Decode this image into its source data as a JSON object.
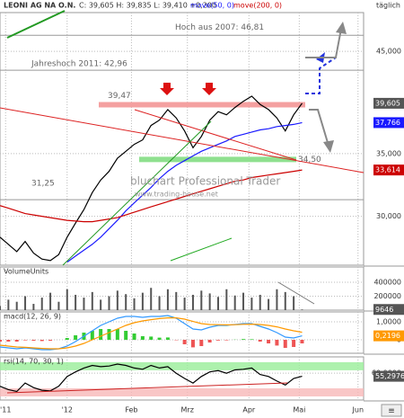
{
  "header": {
    "title": "LEONI AG NA O.N.",
    "subtitle": "C: 39,605 H: 39,835 L: 39,410 +0,200",
    "period": "täglich",
    "watermark": "bluchart Professional Trader",
    "website": "www.trading-house.net"
  },
  "chart_data": [
    {
      "type": "line",
      "log_scale": true,
      "xlim": [
        0,
        130
      ],
      "ylim": [
        26.6,
        49.5
      ],
      "yticks": [
        {
          "value": 45,
          "label": "45,000"
        },
        {
          "value": 35,
          "label": "35,000"
        },
        {
          "value": 30,
          "label": "30,000"
        }
      ],
      "x": [
        0,
        3,
        6,
        9,
        12,
        15,
        18,
        21,
        24,
        27,
        30,
        33,
        36,
        39,
        42,
        45,
        48,
        51,
        54,
        57,
        60,
        63,
        66,
        69,
        72,
        75,
        78,
        81,
        84,
        87,
        90,
        93,
        96,
        99,
        102,
        105,
        108
      ],
      "series": [
        {
          "color": "#000000",
          "values": [
            28.5,
            28.0,
            27.5,
            28.2,
            27.4,
            27.0,
            26.9,
            27.3,
            28.5,
            29.5,
            30.5,
            31.8,
            32.8,
            33.5,
            34.6,
            35.2,
            35.8,
            36.2,
            37.5,
            38.0,
            39.0,
            38.2,
            37.0,
            35.5,
            36.5,
            38.0,
            38.8,
            38.5,
            39.2,
            39.8,
            40.3,
            39.5,
            39.0,
            38.2,
            37.0,
            38.5,
            39.605
          ]
        },
        {
          "name": "move(50, 0)",
          "color": "#1a1aff",
          "values": [
            null,
            null,
            null,
            null,
            null,
            null,
            null,
            null,
            26.8,
            27.2,
            27.6,
            28.0,
            28.5,
            29.1,
            29.7,
            30.4,
            31.0,
            31.6,
            32.2,
            32.9,
            33.5,
            34.0,
            34.4,
            34.8,
            35.2,
            35.5,
            35.8,
            36.1,
            36.5,
            36.7,
            36.9,
            37.1,
            37.2,
            37.4,
            37.5,
            37.6,
            37.766
          ]
        },
        {
          "name": "move(200, 0)",
          "color": "#cc0000",
          "values": [
            30.8,
            30.6,
            30.4,
            30.2,
            30.1,
            30.0,
            29.9,
            29.8,
            29.7,
            29.65,
            29.6,
            29.6,
            29.7,
            29.8,
            29.9,
            30.1,
            30.3,
            30.5,
            30.7,
            30.9,
            31.1,
            31.3,
            31.5,
            31.7,
            31.9,
            32.1,
            32.3,
            32.5,
            32.7,
            32.8,
            33.0,
            33.1,
            33.2,
            33.3,
            33.4,
            33.5,
            33.614
          ]
        }
      ],
      "levels": [
        {
          "value": 46.81,
          "label": "Hoch aus 2007: 46,81",
          "color": "#999999"
        },
        {
          "value": 42.96,
          "label": "Jahreshoch 2011: 42,96",
          "color": "#999999"
        },
        {
          "value": 39.47,
          "label": "39,47",
          "color": "#f4a0a0"
        },
        {
          "value": 34.5,
          "label": "34,50",
          "color": "#8fe08f"
        },
        {
          "value": 31.25,
          "label": "31,25",
          "color": "#999999"
        }
      ],
      "tags": [
        {
          "value": 39.605,
          "label": "39,605",
          "color": "#555555"
        },
        {
          "value": 37.766,
          "label": "37,766",
          "color": "#1a1aff"
        },
        {
          "value": 33.614,
          "label": "33,614",
          "color": "#cc0000"
        }
      ]
    },
    {
      "type": "bar",
      "title": "VolumeUnits",
      "xlim": [
        0,
        130
      ],
      "ylim": [
        0,
        620000
      ],
      "color": "#555555",
      "yticks": [
        400000,
        200000
      ],
      "x": [
        0,
        3,
        6,
        9,
        12,
        15,
        18,
        21,
        24,
        27,
        30,
        33,
        36,
        39,
        42,
        45,
        48,
        51,
        54,
        57,
        60,
        63,
        66,
        69,
        72,
        75,
        78,
        81,
        84,
        87,
        90,
        93,
        96,
        99,
        102,
        105,
        108
      ],
      "values": [
        60000,
        150000,
        120000,
        200000,
        90000,
        180000,
        250000,
        120000,
        300000,
        220000,
        180000,
        260000,
        150000,
        200000,
        280000,
        230000,
        170000,
        250000,
        320000,
        200000,
        300000,
        260000,
        180000,
        220000,
        280000,
        240000,
        190000,
        300000,
        210000,
        250000,
        180000,
        220000,
        160000,
        300000,
        260000,
        200000,
        9646
      ],
      "tags": [
        {
          "value": 9646,
          "label": "9646",
          "color": "#555555"
        }
      ]
    },
    {
      "type": "macd",
      "title": "macd(12, 26, 9)",
      "xlim": [
        0,
        130
      ],
      "ylim": [
        -0.75,
        1.55
      ],
      "yticks": [
        {
          "value": 1,
          "label": "1,0000"
        },
        0
      ],
      "up_color": "#33cc33",
      "down_color": "#ee5555",
      "x": [
        0,
        3,
        6,
        9,
        12,
        15,
        18,
        21,
        24,
        27,
        30,
        33,
        36,
        39,
        42,
        45,
        48,
        51,
        54,
        57,
        60,
        63,
        66,
        69,
        72,
        75,
        78,
        81,
        84,
        87,
        90,
        93,
        96,
        99,
        102,
        105,
        108
      ],
      "series": [
        {
          "color": "#3399ff",
          "values": [
            -0.4,
            -0.45,
            -0.5,
            -0.45,
            -0.5,
            -0.55,
            -0.55,
            -0.5,
            -0.35,
            -0.1,
            0.2,
            0.5,
            0.8,
            1.0,
            1.2,
            1.3,
            1.3,
            1.25,
            1.3,
            1.3,
            1.35,
            1.2,
            0.9,
            0.6,
            0.55,
            0.7,
            0.8,
            0.8,
            0.85,
            0.9,
            0.9,
            0.75,
            0.6,
            0.4,
            0.15,
            0.1,
            0.2196
          ]
        },
        {
          "color": "#ff9900",
          "values": [
            -0.3,
            -0.35,
            -0.4,
            -0.42,
            -0.45,
            -0.48,
            -0.5,
            -0.5,
            -0.45,
            -0.35,
            -0.2,
            0.0,
            0.2,
            0.4,
            0.6,
            0.8,
            0.95,
            1.05,
            1.12,
            1.18,
            1.22,
            1.22,
            1.15,
            1.02,
            0.9,
            0.85,
            0.84,
            0.83,
            0.84,
            0.86,
            0.87,
            0.85,
            0.8,
            0.72,
            0.6,
            0.5,
            0.42
          ]
        }
      ],
      "histogram": [
        -0.1,
        -0.1,
        -0.1,
        -0.03,
        -0.05,
        -0.07,
        -0.05,
        0,
        0.1,
        0.25,
        0.4,
        0.5,
        0.6,
        0.6,
        0.6,
        0.5,
        0.35,
        0.2,
        0.18,
        0.12,
        0.13,
        -0.02,
        -0.25,
        -0.42,
        -0.35,
        -0.15,
        -0.04,
        -0.03,
        0.01,
        0.04,
        0.03,
        -0.1,
        -0.2,
        -0.32,
        -0.45,
        -0.4,
        -0.2
      ],
      "tags": [
        {
          "value": 0.2196,
          "label": "0,2196",
          "color": "#ff9900"
        }
      ]
    },
    {
      "type": "line",
      "title": "rsi(14, 70, 30, 1)",
      "xlim": [
        0,
        130
      ],
      "ylim": [
        19,
        85
      ],
      "yticks": [
        {
          "value": 60,
          "label": "60,0000"
        }
      ],
      "bands": [
        {
          "value": 70,
          "color": "#99ee99"
        },
        {
          "value": 30,
          "color": "#f8b8b8"
        }
      ],
      "xticks": [
        {
          "value": 2,
          "label": "'11"
        },
        {
          "value": 24,
          "label": "'12"
        },
        {
          "value": 47,
          "label": "Feb"
        },
        {
          "value": 67,
          "label": "Mrz"
        },
        {
          "value": 89,
          "label": "Apr"
        },
        {
          "value": 107,
          "label": "Mai"
        },
        {
          "value": 128,
          "label": "Jun"
        }
      ],
      "x": [
        0,
        3,
        6,
        9,
        12,
        15,
        18,
        21,
        24,
        27,
        30,
        33,
        36,
        39,
        42,
        45,
        48,
        51,
        54,
        57,
        60,
        63,
        66,
        69,
        72,
        75,
        78,
        81,
        84,
        87,
        90,
        93,
        96,
        99,
        102,
        105,
        108
      ],
      "series": [
        {
          "color": "#000000",
          "values": [
            40,
            35,
            32,
            45,
            38,
            34,
            33,
            40,
            55,
            62,
            68,
            72,
            70,
            71,
            74,
            72,
            68,
            66,
            72,
            68,
            70,
            60,
            52,
            45,
            55,
            62,
            64,
            60,
            65,
            66,
            68,
            58,
            55,
            48,
            42,
            52,
            55.2976
          ]
        }
      ],
      "tags": [
        {
          "value": 55.2976,
          "label": "55,2976",
          "color": "#555555"
        }
      ]
    }
  ]
}
